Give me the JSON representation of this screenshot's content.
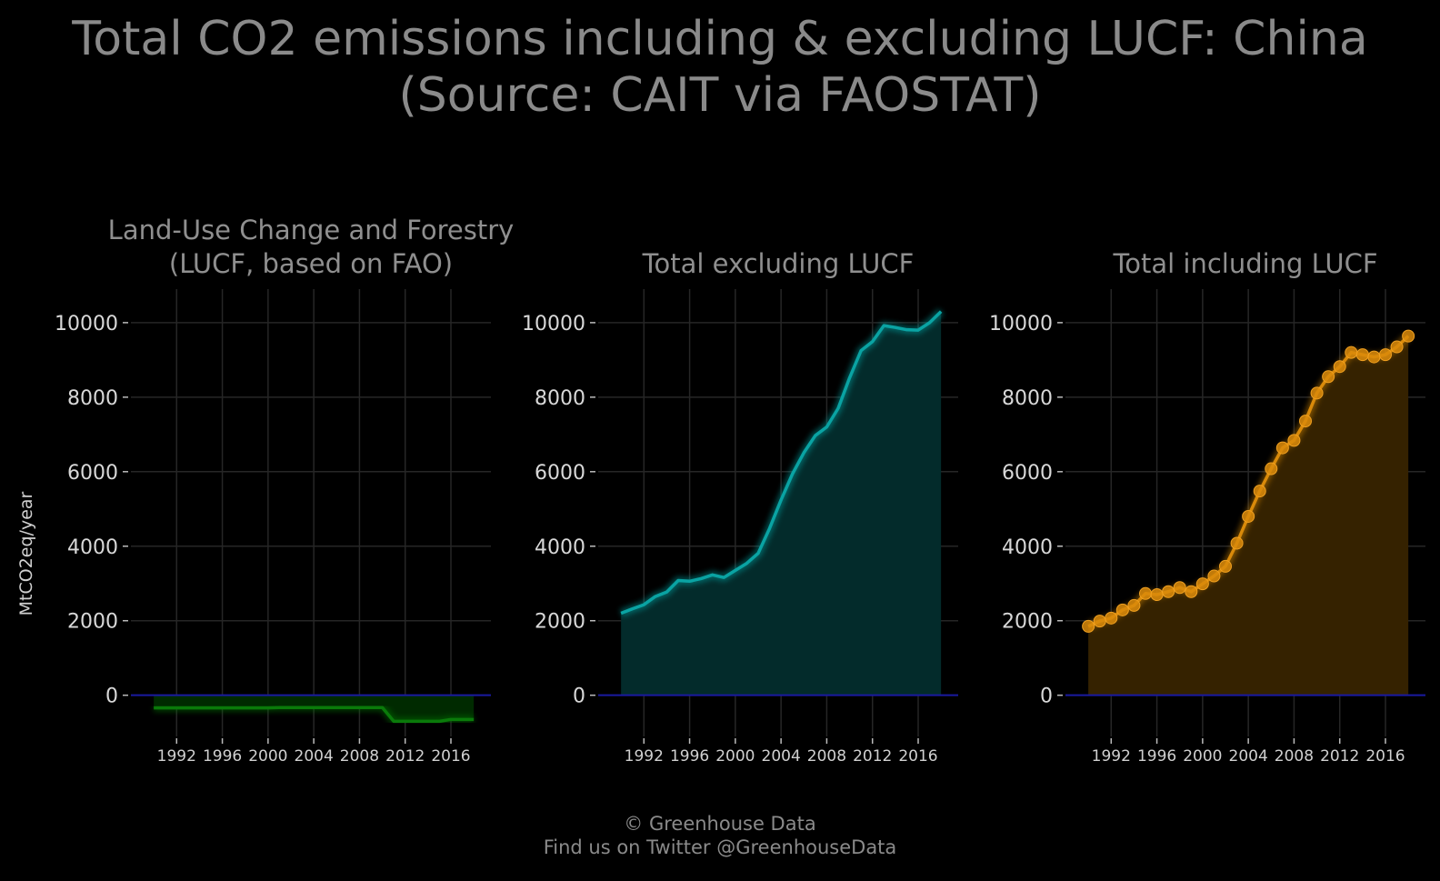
{
  "title": {
    "line1": "Total CO2 emissions including & excluding LUCF: China",
    "line2": "(Source: CAIT via FAOSTAT)"
  },
  "footer": {
    "line1": "© Greenhouse Data",
    "line2": "Find us on Twitter @GreenhouseData"
  },
  "chart_data": [
    {
      "type": "area",
      "panel": "lucf",
      "title_lines": [
        "Land-Use Change and Forestry",
        "(LUCF, based on FAO)"
      ],
      "ylabel": "MtCO2eq/year",
      "xlabel": "",
      "x": [
        1990,
        1991,
        1992,
        1993,
        1994,
        1995,
        1996,
        1997,
        1998,
        1999,
        2000,
        2001,
        2002,
        2003,
        2004,
        2005,
        2006,
        2007,
        2008,
        2009,
        2010,
        2011,
        2012,
        2013,
        2014,
        2015,
        2016,
        2017,
        2018
      ],
      "values": [
        -340,
        -340,
        -340,
        -340,
        -340,
        -340,
        -340,
        -340,
        -340,
        -340,
        -340,
        -330,
        -330,
        -330,
        -330,
        -330,
        -330,
        -330,
        -330,
        -330,
        -330,
        -700,
        -700,
        -700,
        -700,
        -700,
        -650,
        -650,
        -650
      ],
      "xlim": [
        1988,
        2019.5
      ],
      "ylim": [
        -1350,
        10900
      ],
      "x_ticks": [
        1992,
        1996,
        2000,
        2004,
        2008,
        2012,
        2016
      ],
      "y_ticks": [
        0,
        2000,
        4000,
        6000,
        8000,
        10000
      ],
      "color": "#0a7a0a",
      "fill": "#002a00",
      "markers": false,
      "grid": true,
      "zero_line_color": "#1a1aa0"
    },
    {
      "type": "area",
      "panel": "excluding",
      "title_lines": [
        "Total excluding LUCF"
      ],
      "ylabel": "",
      "xlabel": "",
      "x": [
        1990,
        1991,
        1992,
        1993,
        1994,
        1995,
        1996,
        1997,
        1998,
        1999,
        2000,
        2001,
        2002,
        2003,
        2004,
        2005,
        2006,
        2007,
        2008,
        2009,
        2010,
        2011,
        2012,
        2013,
        2014,
        2015,
        2016,
        2017,
        2018
      ],
      "values": [
        2200,
        2320,
        2430,
        2650,
        2770,
        3080,
        3060,
        3130,
        3230,
        3160,
        3350,
        3540,
        3810,
        4480,
        5240,
        5940,
        6510,
        6970,
        7200,
        7700,
        8520,
        9250,
        9490,
        9920,
        9870,
        9810,
        9800,
        10000,
        10300
      ],
      "xlim": [
        1988,
        2019.5
      ],
      "ylim": [
        -1350,
        10900
      ],
      "x_ticks": [
        1992,
        1996,
        2000,
        2004,
        2008,
        2012,
        2016
      ],
      "y_ticks": [
        0,
        2000,
        4000,
        6000,
        8000,
        10000
      ],
      "color": "#0aa3a3",
      "fill": "#032b2b",
      "markers": false,
      "grid": true,
      "zero_line_color": "#1a1aa0"
    },
    {
      "type": "area",
      "panel": "including",
      "title_lines": [
        "Total including LUCF"
      ],
      "ylabel": "",
      "xlabel": "",
      "x": [
        1990,
        1991,
        1992,
        1993,
        1994,
        1995,
        1996,
        1997,
        1998,
        1999,
        2000,
        2001,
        2002,
        2003,
        2004,
        2005,
        2006,
        2007,
        2008,
        2009,
        2010,
        2011,
        2012,
        2013,
        2014,
        2015,
        2016,
        2017,
        2018
      ],
      "values": [
        1850,
        1990,
        2070,
        2290,
        2410,
        2730,
        2700,
        2780,
        2890,
        2780,
        2990,
        3200,
        3460,
        4080,
        4800,
        5480,
        6080,
        6640,
        6840,
        7360,
        8110,
        8550,
        8820,
        9200,
        9140,
        9080,
        9140,
        9350,
        9640
      ],
      "xlim": [
        1988,
        2019.5
      ],
      "ylim": [
        -1350,
        10900
      ],
      "x_ticks": [
        1992,
        1996,
        2000,
        2004,
        2008,
        2012,
        2016
      ],
      "y_ticks": [
        0,
        2000,
        4000,
        6000,
        8000,
        10000
      ],
      "color": "#d98a0a",
      "fill": "#352200",
      "markers": true,
      "grid": true,
      "zero_line_color": "#1a1aa0"
    }
  ]
}
